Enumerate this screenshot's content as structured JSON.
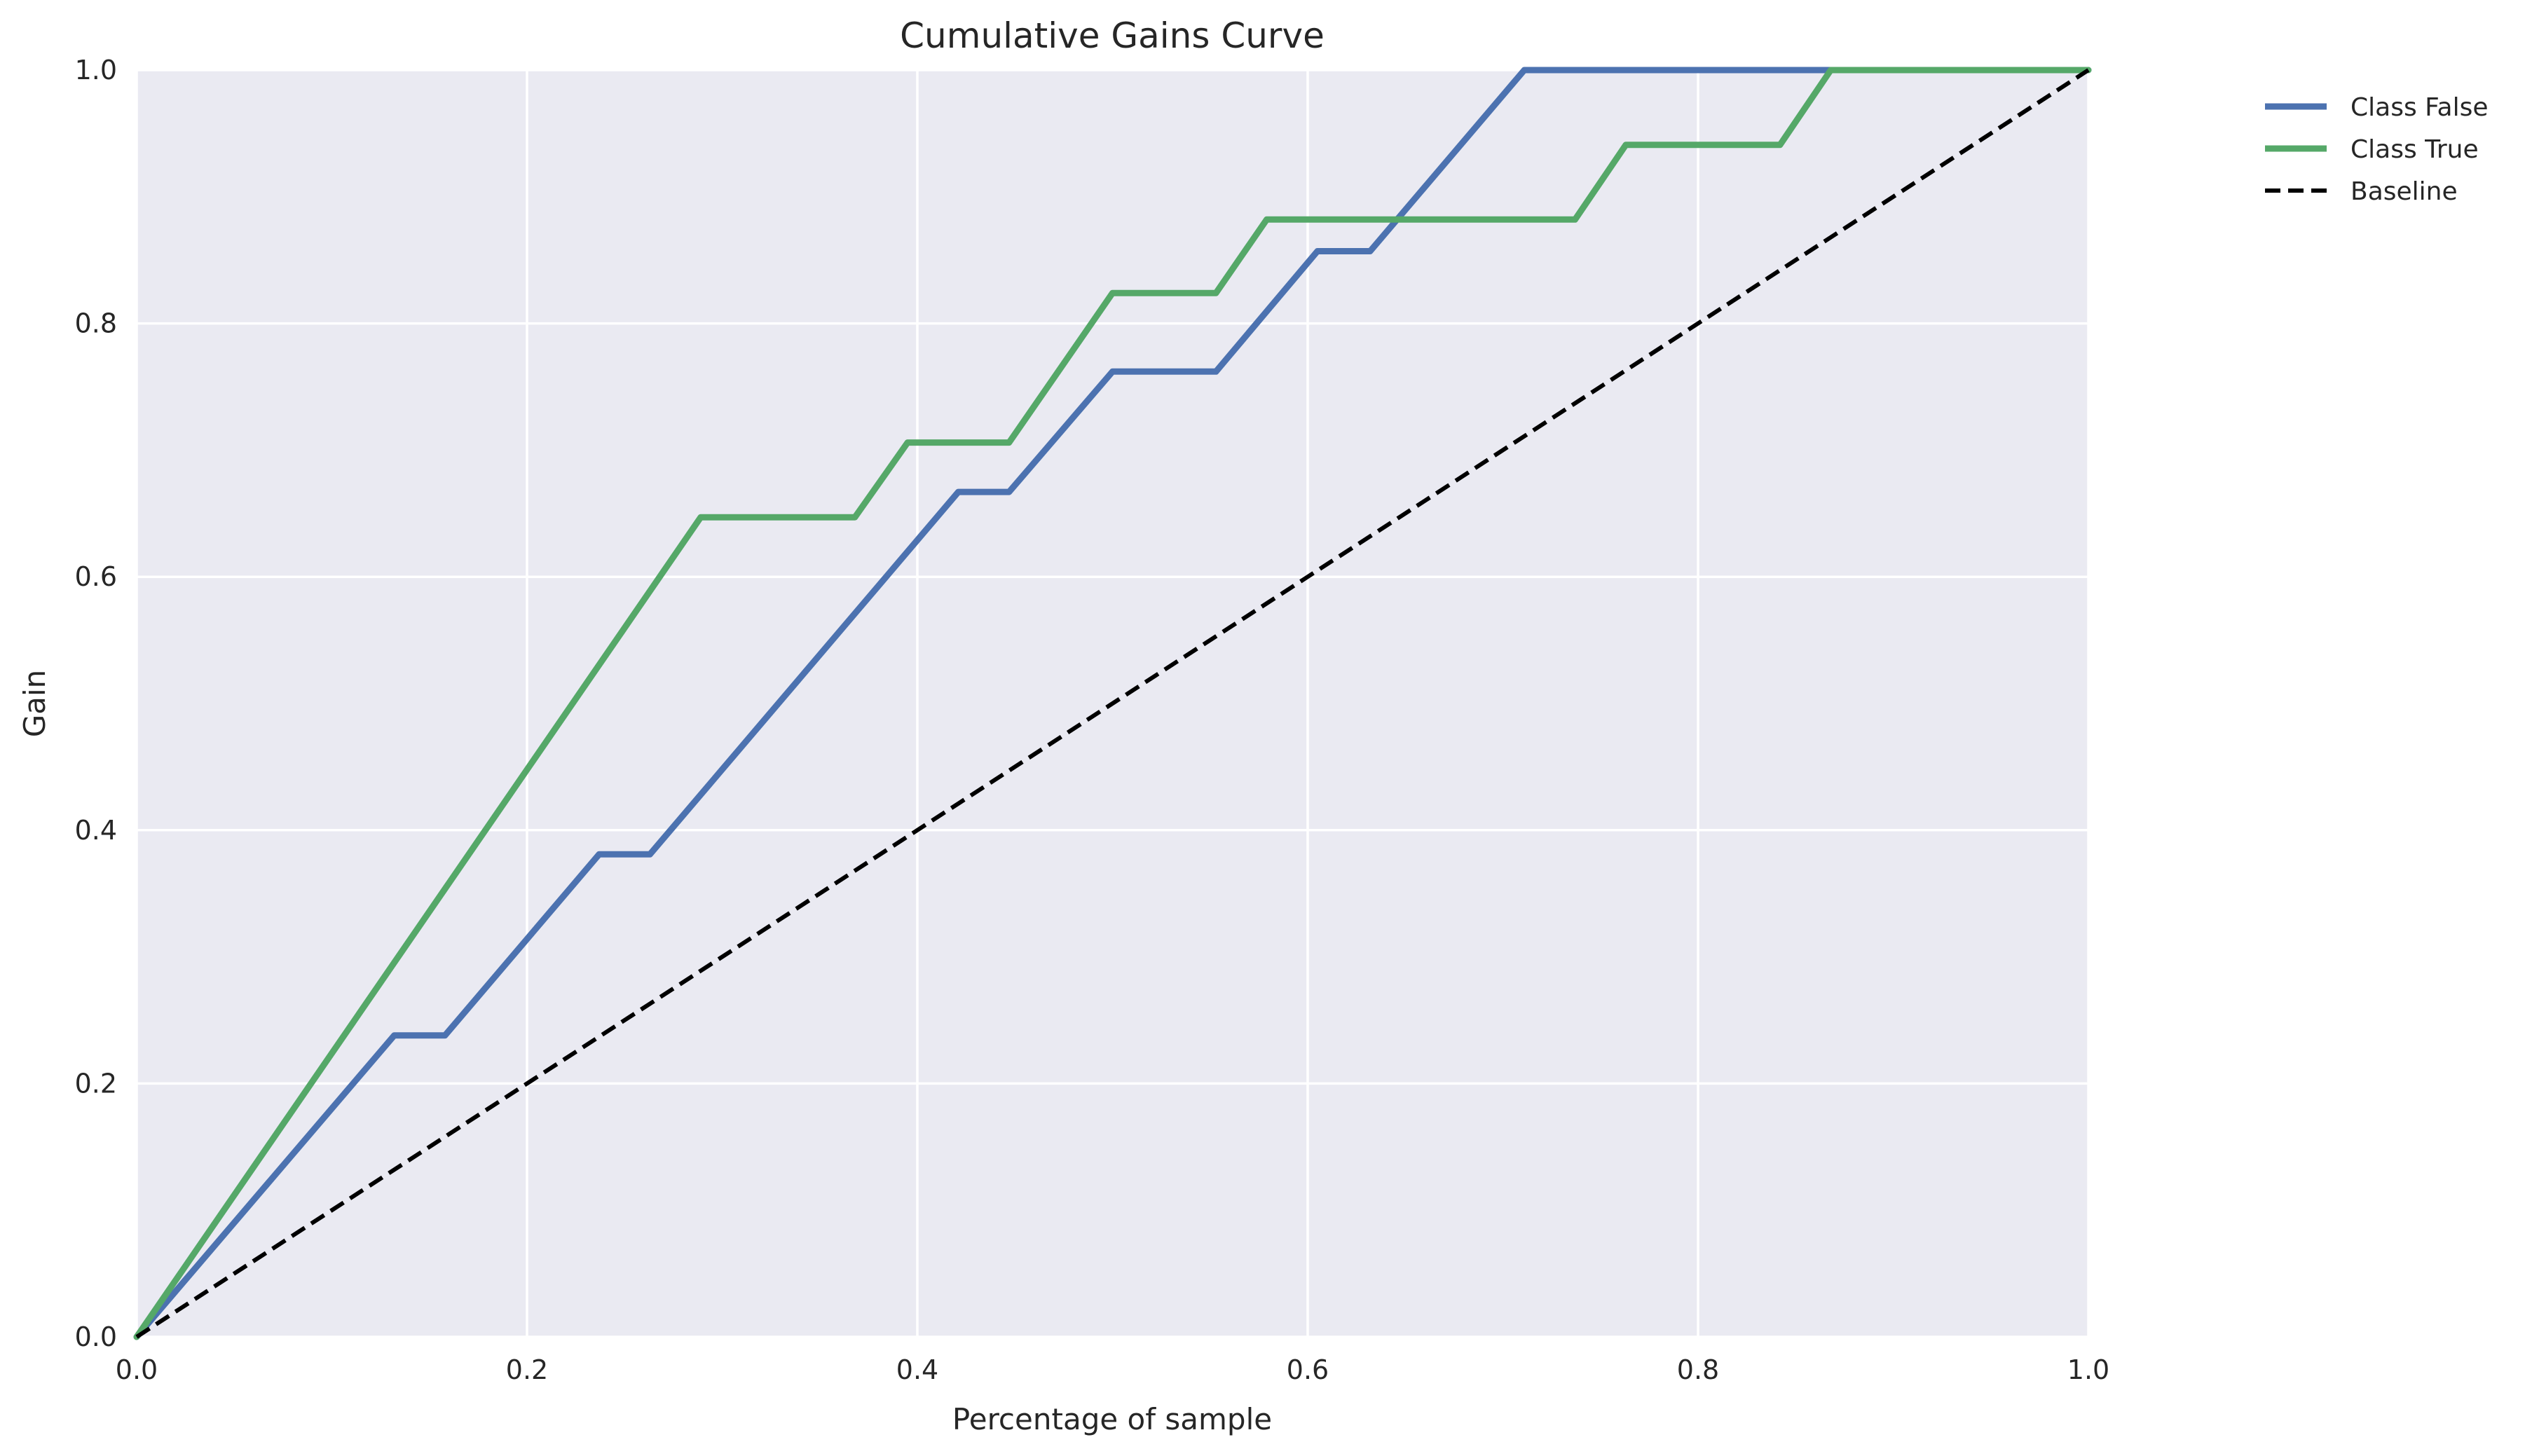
{
  "chart_data": {
    "type": "line",
    "title": "Cumulative Gains Curve",
    "xlabel": "Percentage of sample",
    "ylabel": "Gain",
    "xlim": [
      0,
      1
    ],
    "ylim": [
      0,
      1
    ],
    "xticks": [
      "0.0",
      "0.2",
      "0.4",
      "0.6",
      "0.8",
      "1.0"
    ],
    "yticks": [
      "0.0",
      "0.2",
      "0.4",
      "0.6",
      "0.8",
      "1.0"
    ],
    "grid": true,
    "legend_position": "outside upper right",
    "series": [
      {
        "name": "Class False",
        "color": "#4c72b0",
        "style": "solid",
        "x": [
          0.0,
          0.132,
          0.158,
          0.237,
          0.263,
          0.421,
          0.447,
          0.5,
          0.553,
          0.605,
          0.632,
          0.711,
          1.0
        ],
        "y": [
          0.0,
          0.238,
          0.238,
          0.381,
          0.381,
          0.667,
          0.667,
          0.762,
          0.762,
          0.857,
          0.857,
          1.0,
          1.0
        ]
      },
      {
        "name": "Class True",
        "color": "#55a868",
        "style": "solid",
        "x": [
          0.0,
          0.289,
          0.368,
          0.395,
          0.447,
          0.5,
          0.553,
          0.579,
          0.737,
          0.763,
          0.842,
          0.868,
          1.0
        ],
        "y": [
          0.0,
          0.647,
          0.647,
          0.706,
          0.706,
          0.824,
          0.824,
          0.882,
          0.882,
          0.941,
          0.941,
          1.0,
          1.0
        ]
      },
      {
        "name": "Baseline",
        "color": "#000000",
        "style": "dashed",
        "x": [
          0.0,
          1.0
        ],
        "y": [
          0.0,
          1.0
        ]
      }
    ]
  }
}
